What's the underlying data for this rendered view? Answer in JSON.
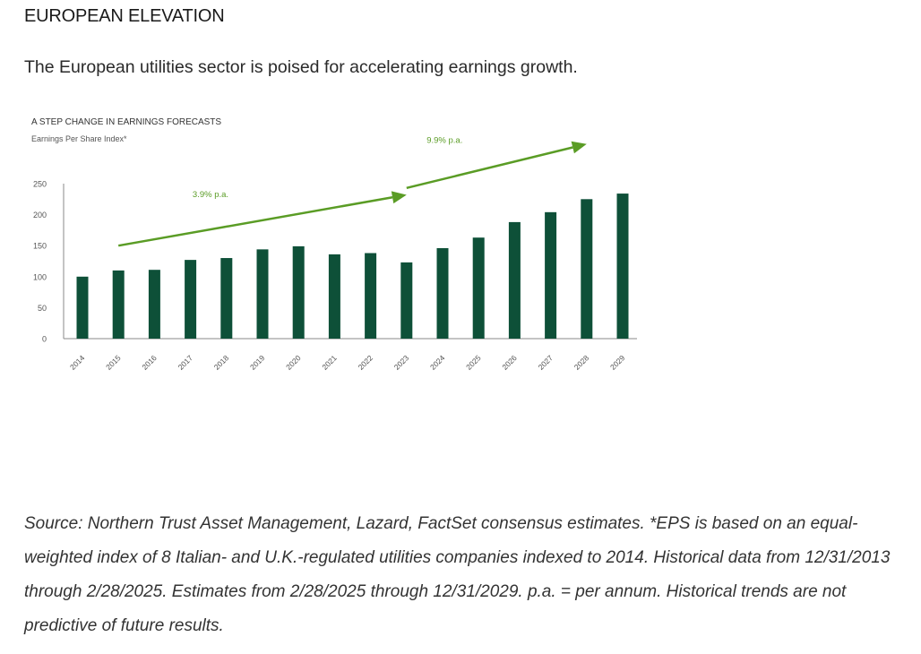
{
  "header": {
    "title": "EUROPEAN ELEVATION",
    "intro": "The European utilities sector is poised for accelerating earnings growth."
  },
  "footnote": "Source: Northern Trust Asset Management, Lazard, FactSet consensus estimates. *EPS is based on an equal-weighted index of 8 Italian- and U.K.-regulated utilities companies indexed to 2014. Historical data from 12/31/2013 through 2/28/2025. Estimates from 2/28/2025 through 12/31/2029. p.a. = per annum. Historical trends are not predictive of future results.",
  "colors": {
    "bar": "#0e5038",
    "trend": "#5a9c25",
    "axis": "#8a8a8a"
  },
  "chart_data": {
    "type": "bar",
    "title": "A STEP CHANGE IN EARNINGS FORECASTS",
    "subtitle": "Earnings Per Share Index*",
    "xlabel": "",
    "ylabel": "",
    "ylim": [
      0,
      250
    ],
    "yticks": [
      0,
      50,
      100,
      150,
      200,
      250
    ],
    "grid": false,
    "legend": "none",
    "categories": [
      "2014",
      "2015",
      "2016",
      "2017",
      "2018",
      "2019",
      "2020",
      "2021",
      "2022",
      "2023",
      "2024",
      "2025",
      "2026",
      "2027",
      "2028",
      "2029"
    ],
    "series": [
      {
        "values": [
          100,
          110,
          111,
          127,
          130,
          144,
          149,
          136,
          138,
          123,
          146,
          163,
          188,
          204,
          225,
          234
        ]
      }
    ],
    "annotations": [
      {
        "text": "3.9% p.a.",
        "from": [
          "2015",
          150
        ],
        "to": [
          "2023",
          232
        ]
      },
      {
        "text": "9.9% p.a.",
        "from": [
          "2023",
          243
        ],
        "to": [
          "2028",
          314
        ]
      }
    ]
  }
}
